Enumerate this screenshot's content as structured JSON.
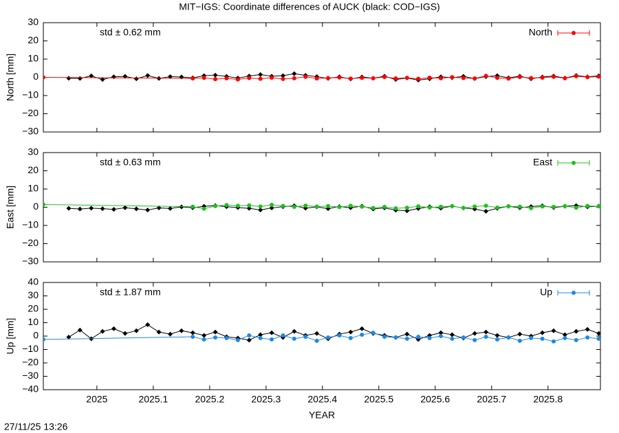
{
  "title": "MIT−IGS: Coordinate differences of AUCK (black: COD−IGS)",
  "timestamp": "27/11/25 13:26",
  "chart_data": [
    {
      "type": "line",
      "ylabel": "North [mm]",
      "annotation": "std ± 0.62 mm",
      "annotation_color": "#ff0000",
      "xlim": [
        2024.905,
        2025.893
      ],
      "xticks": [
        2025,
        2025.1,
        2025.2,
        2025.3,
        2025.4,
        2025.5,
        2025.6,
        2025.7,
        2025.8
      ],
      "ylim": [
        -30,
        30
      ],
      "yticks": [
        {
          "value": -30,
          "label": "−30"
        },
        {
          "value": -20,
          "label": "−20"
        },
        {
          "value": -10,
          "label": "−10"
        },
        0,
        10,
        20,
        30
      ],
      "legend": "upper right",
      "series": [
        {
          "color": "#000000",
          "marker": "diamond",
          "x": [
            2024.95,
            2024.97,
            2024.99,
            2025.01,
            2025.03,
            2025.05,
            2025.07,
            2025.09,
            2025.11,
            2025.13,
            2025.15,
            2025.17,
            2025.19,
            2025.21,
            2025.23,
            2025.25,
            2025.27,
            2025.29,
            2025.31,
            2025.33,
            2025.35,
            2025.37,
            2025.39,
            2025.41,
            2025.43,
            2025.45,
            2025.47,
            2025.49,
            2025.51,
            2025.53,
            2025.55,
            2025.57,
            2025.59,
            2025.61,
            2025.63,
            2025.65,
            2025.67,
            2025.69,
            2025.71,
            2025.73,
            2025.75,
            2025.77,
            2025.79,
            2025.81,
            2025.83,
            2025.85,
            2025.87,
            2025.89
          ],
          "values": [
            -0.5,
            -0.6,
            0.8,
            -1.2,
            0.3,
            0.5,
            -0.8,
            1.0,
            -0.6,
            0.4,
            0.2,
            -0.3,
            0.9,
            1.2,
            0.5,
            -0.4,
            0.7,
            1.5,
            0.6,
            0.9,
            2.0,
            1.1,
            0.4,
            -0.6,
            0.3,
            -0.9,
            0.2,
            -0.5,
            0.6,
            -1.2,
            -0.4,
            -1.5,
            -0.8,
            0.3,
            -0.2,
            0.5,
            -0.7,
            0.4,
            0.9,
            -0.3,
            0.6,
            -0.8,
            0.2,
            0.7,
            -0.4,
            1.0,
            0.3,
            0.8
          ]
        },
        {
          "name": "North",
          "color": "#ff0000",
          "marker": "circle",
          "x": [
            2024.905,
            2025.17,
            2025.19,
            2025.21,
            2025.23,
            2025.25,
            2025.27,
            2025.29,
            2025.31,
            2025.33,
            2025.35,
            2025.37,
            2025.39,
            2025.41,
            2025.43,
            2025.45,
            2025.47,
            2025.49,
            2025.51,
            2025.53,
            2025.55,
            2025.57,
            2025.59,
            2025.61,
            2025.63,
            2025.65,
            2025.67,
            2025.69,
            2025.71,
            2025.73,
            2025.75,
            2025.77,
            2025.79,
            2025.81,
            2025.83,
            2025.85,
            2025.87,
            2025.89
          ],
          "values": [
            0,
            -0.6,
            -0.3,
            -1.0,
            -0.5,
            -1.2,
            -0.4,
            -0.8,
            -0.2,
            -0.9,
            -0.5,
            0.3,
            -0.6,
            -0.4,
            -0.1,
            -0.7,
            -0.3,
            -0.5,
            0.2,
            -0.6,
            -0.3,
            -0.8,
            -0.2,
            -0.5,
            0.1,
            -0.4,
            -0.6,
            0.8,
            -0.3,
            -0.7,
            0.2,
            -0.4,
            -0.2,
            0.3,
            -0.5,
            0.6,
            0.1,
            0.4
          ]
        }
      ]
    },
    {
      "type": "line",
      "ylabel": "East [mm]",
      "annotation": "std ± 0.63 mm",
      "annotation_color": "#1fbf1f",
      "xlim": [
        2024.905,
        2025.893
      ],
      "xticks": [
        2025,
        2025.1,
        2025.2,
        2025.3,
        2025.4,
        2025.5,
        2025.6,
        2025.7,
        2025.8
      ],
      "ylim": [
        -30,
        30
      ],
      "yticks": [
        {
          "value": -30,
          "label": "−30"
        },
        {
          "value": -20,
          "label": "−20"
        },
        {
          "value": -10,
          "label": "−10"
        },
        0,
        10,
        20,
        30
      ],
      "legend": "upper right",
      "series": [
        {
          "color": "#000000",
          "marker": "diamond",
          "x": [
            2024.95,
            2024.97,
            2024.99,
            2025.01,
            2025.03,
            2025.05,
            2025.07,
            2025.09,
            2025.11,
            2025.13,
            2025.15,
            2025.17,
            2025.19,
            2025.21,
            2025.23,
            2025.25,
            2025.27,
            2025.29,
            2025.31,
            2025.33,
            2025.35,
            2025.37,
            2025.39,
            2025.41,
            2025.43,
            2025.45,
            2025.47,
            2025.49,
            2025.51,
            2025.53,
            2025.55,
            2025.57,
            2025.59,
            2025.61,
            2025.63,
            2025.65,
            2025.67,
            2025.69,
            2025.71,
            2025.73,
            2025.75,
            2025.77,
            2025.79,
            2025.81,
            2025.83,
            2025.85,
            2025.87,
            2025.89
          ],
          "values": [
            -0.6,
            -1.0,
            -0.5,
            -0.8,
            -1.2,
            -0.3,
            -0.9,
            -1.5,
            -0.4,
            -0.7,
            0.2,
            -0.3,
            0.5,
            0.9,
            0.3,
            -0.2,
            -0.6,
            -1.5,
            -0.4,
            0.3,
            0.8,
            -0.5,
            0.2,
            -0.8,
            0.4,
            -0.3,
            0.6,
            -1.0,
            -0.4,
            -1.6,
            -2.0,
            -0.7,
            0.3,
            -0.5,
            0.6,
            -0.4,
            -1.0,
            -2.2,
            -0.6,
            0.5,
            -0.3,
            0.4,
            0.8,
            -0.2,
            0.5,
            0.9,
            0.2,
            0.6
          ]
        },
        {
          "name": "East",
          "color": "#1fbf1f",
          "marker": "circle",
          "x": [
            2024.905,
            2025.17,
            2025.19,
            2025.21,
            2025.23,
            2025.25,
            2025.27,
            2025.29,
            2025.31,
            2025.33,
            2025.35,
            2025.37,
            2025.39,
            2025.41,
            2025.43,
            2025.45,
            2025.47,
            2025.49,
            2025.51,
            2025.53,
            2025.55,
            2025.57,
            2025.59,
            2025.61,
            2025.63,
            2025.65,
            2025.67,
            2025.69,
            2025.71,
            2025.73,
            2025.75,
            2025.77,
            2025.79,
            2025.81,
            2025.83,
            2025.85,
            2025.87,
            2025.89
          ],
          "values": [
            1.5,
            0.3,
            -0.8,
            0.6,
            1.2,
            0.8,
            1.0,
            0.4,
            1.3,
            0.7,
            0.2,
            0.9,
            0.4,
            0.6,
            0.1,
            0.8,
            0.3,
            -0.4,
            0.2,
            -0.6,
            -0.3,
            0.5,
            -0.2,
            0.3,
            0.6,
            -0.4,
            0.4,
            0.8,
            -0.2,
            0.5,
            0.3,
            -0.5,
            0.4,
            0.2,
            0.6,
            -0.3,
            0.7,
            0.5
          ]
        }
      ]
    },
    {
      "type": "line",
      "ylabel": "Up [mm]",
      "xlabel": "YEAR",
      "annotation": "std ± 1.87 mm",
      "annotation_color": "#1e88e5",
      "xlim": [
        2024.905,
        2025.893
      ],
      "xticks": [
        2025,
        2025.1,
        2025.2,
        2025.3,
        2025.4,
        2025.5,
        2025.6,
        2025.7,
        2025.8
      ],
      "ylim": [
        -40,
        40
      ],
      "yticks": [
        {
          "value": -40,
          "label": "−40"
        },
        {
          "value": -30,
          "label": "−30"
        },
        {
          "value": -20,
          "label": "−20"
        },
        {
          "value": -10,
          "label": "−10"
        },
        0,
        10,
        20,
        30,
        40
      ],
      "legend": "upper right",
      "series": [
        {
          "color": "#000000",
          "marker": "diamond",
          "x": [
            2024.95,
            2024.97,
            2024.99,
            2025.01,
            2025.03,
            2025.05,
            2025.07,
            2025.09,
            2025.11,
            2025.13,
            2025.15,
            2025.17,
            2025.19,
            2025.21,
            2025.23,
            2025.25,
            2025.27,
            2025.29,
            2025.31,
            2025.33,
            2025.35,
            2025.37,
            2025.39,
            2025.41,
            2025.43,
            2025.45,
            2025.47,
            2025.49,
            2025.51,
            2025.53,
            2025.55,
            2025.57,
            2025.59,
            2025.61,
            2025.63,
            2025.65,
            2025.67,
            2025.69,
            2025.71,
            2025.73,
            2025.75,
            2025.77,
            2025.79,
            2025.81,
            2025.83,
            2025.85,
            2025.87,
            2025.89
          ],
          "values": [
            -0.8,
            4.5,
            -2.0,
            3.5,
            5.5,
            2.0,
            4.0,
            8.5,
            3.0,
            1.5,
            4.0,
            2.5,
            0.5,
            3.0,
            -0.5,
            -1.5,
            -3.0,
            1.0,
            2.5,
            -1.0,
            3.5,
            0.5,
            2.0,
            -2.0,
            1.5,
            3.0,
            5.5,
            2.0,
            0.5,
            -1.0,
            1.5,
            -2.5,
            0.5,
            2.5,
            1.0,
            -1.5,
            2.0,
            3.0,
            0.5,
            -1.0,
            1.5,
            0.0,
            2.5,
            4.0,
            1.0,
            3.5,
            5.0,
            2.0
          ]
        },
        {
          "name": "Up",
          "color": "#1e88e5",
          "marker": "circle",
          "x": [
            2024.905,
            2025.17,
            2025.19,
            2025.21,
            2025.23,
            2025.25,
            2025.27,
            2025.29,
            2025.31,
            2025.33,
            2025.35,
            2025.37,
            2025.39,
            2025.41,
            2025.43,
            2025.45,
            2025.47,
            2025.49,
            2025.51,
            2025.53,
            2025.55,
            2025.57,
            2025.59,
            2025.61,
            2025.63,
            2025.65,
            2025.67,
            2025.69,
            2025.71,
            2025.73,
            2025.75,
            2025.77,
            2025.79,
            2025.81,
            2025.83,
            2025.85,
            2025.87,
            2025.89
          ],
          "values": [
            -2.5,
            -0.5,
            -2.5,
            -1.0,
            -1.5,
            -3.0,
            0.5,
            -1.5,
            -2.5,
            0.5,
            -2.0,
            -0.5,
            -3.5,
            -1.0,
            0.5,
            -1.5,
            1.0,
            2.5,
            -0.5,
            -1.0,
            -2.0,
            -0.5,
            -1.5,
            0.0,
            -2.0,
            -1.0,
            -3.0,
            -0.5,
            -2.5,
            -1.0,
            -3.5,
            -1.5,
            -2.0,
            -4.0,
            -1.5,
            -3.0,
            -1.0,
            -2.0
          ]
        }
      ]
    }
  ]
}
